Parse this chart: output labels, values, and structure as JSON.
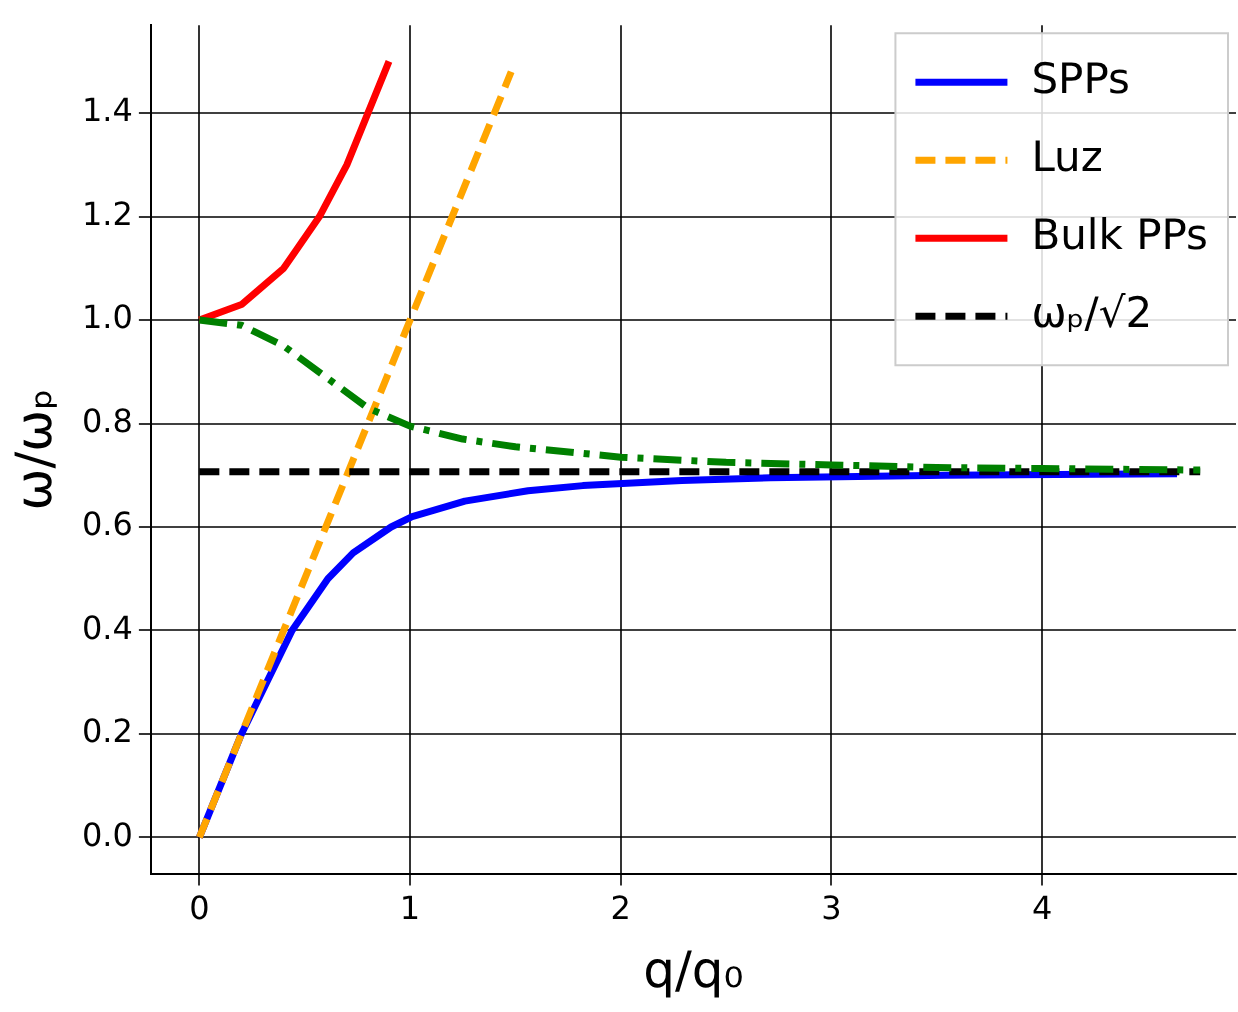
{
  "chart_data": {
    "type": "line",
    "xlabel": "q/q₀",
    "ylabel": "ω/ωₚ",
    "xlim": [
      -0.23,
      4.92
    ],
    "ylim": [
      -0.07,
      1.57
    ],
    "xticks": [
      0,
      1,
      2,
      3,
      4
    ],
    "yticks": [
      {
        "value": 0,
        "label": "0.0"
      },
      {
        "value": 0.2,
        "label": "0.2"
      },
      {
        "value": 0.4,
        "label": "0.4"
      },
      {
        "value": 0.6,
        "label": "0.6"
      },
      {
        "value": 0.8,
        "label": "0.8"
      },
      {
        "value": 1,
        "label": "1.0"
      },
      {
        "value": 1.2,
        "label": "1.2"
      },
      {
        "value": 1.4,
        "label": "1.4"
      }
    ],
    "grid": true,
    "legend": "top right",
    "marker": "none",
    "series": [
      {
        "name": "SPPs",
        "color": "#0000ff",
        "line_style": "solid",
        "x": [
          0,
          0.1,
          0.2,
          0.32,
          0.44,
          0.61,
          0.73,
          0.91,
          1.01,
          1.26,
          1.56,
          1.82,
          2.29,
          2.71,
          3.54,
          4.64
        ],
        "values": [
          0,
          0.1,
          0.2,
          0.3,
          0.4,
          0.5,
          0.55,
          0.6,
          0.62,
          0.65,
          0.67,
          0.68,
          0.69,
          0.695,
          0.7,
          0.703
        ]
      },
      {
        "name": "Luz",
        "color": "#ffa500",
        "line_style": "dashed",
        "x": [
          0,
          1.48
        ],
        "values": [
          0,
          1.48
        ]
      },
      {
        "name": "Bulk PPs",
        "color": "#ff0000",
        "line_style": "solid",
        "x": [
          0,
          0.2,
          0.4,
          0.57,
          0.7,
          0.8,
          0.9
        ],
        "values": [
          1,
          1.03,
          1.1,
          1.2,
          1.3,
          1.4,
          1.5
        ]
      },
      {
        "name": "ωₚ/√2",
        "color": "#000000",
        "line_style": "dashed",
        "x": [
          0,
          4.75
        ],
        "values": [
          0.707,
          0.707
        ]
      },
      {
        "color": "#008000",
        "line_style": "dashdot",
        "x": [
          0,
          0.2,
          0.4,
          0.6,
          0.8,
          1,
          1.25,
          1.5,
          2,
          2.5,
          3,
          3.5,
          4,
          4.75
        ],
        "values": [
          1,
          0.99,
          0.95,
          0.89,
          0.83,
          0.795,
          0.77,
          0.755,
          0.735,
          0.725,
          0.72,
          0.715,
          0.713,
          0.71
        ]
      }
    ]
  }
}
